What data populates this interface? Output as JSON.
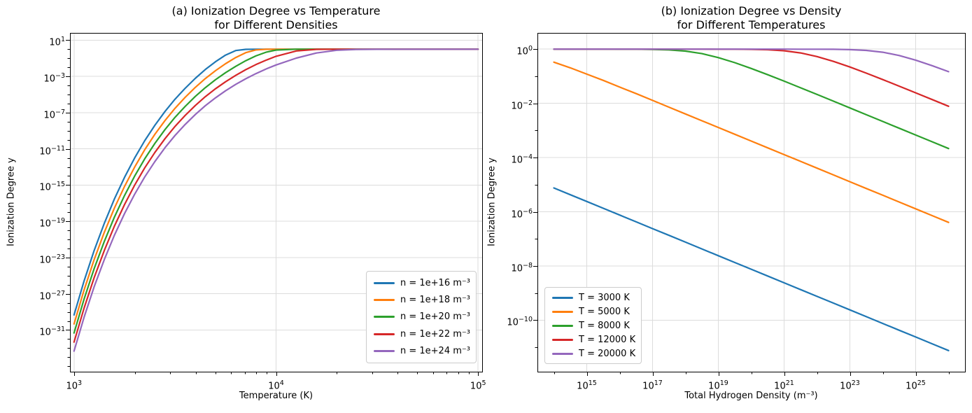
{
  "figure": {
    "background": "#ffffff"
  },
  "chart_data": [
    {
      "id": "left",
      "type": "line",
      "title": "(a) Ionization Degree vs Temperature for Different Densities",
      "title_lines": [
        "(a) Ionization Degree vs Temperature",
        "for Different Densities"
      ],
      "xlabel": "Temperature (K)",
      "ylabel": "Ionization Degree y",
      "xscale": "log",
      "yscale": "log",
      "grid": true,
      "legend_position": "lower right",
      "xlim_log": [
        2.98,
        5.02
      ],
      "ylim_log": [
        -35.6,
        1.8
      ],
      "xticks_exp": [
        3,
        4,
        5
      ],
      "yticks_exp": [
        1,
        -3,
        -7,
        -11,
        -15,
        -19,
        -23,
        -27,
        -31
      ],
      "minor_xticks_log": [
        3.301,
        3.477,
        3.602,
        3.699,
        3.778,
        3.845,
        3.903,
        3.954,
        4.301,
        4.477,
        4.602,
        4.699,
        4.778,
        4.845,
        4.903,
        4.954
      ],
      "minor_yticks_log": [
        0,
        -1,
        -2,
        -4,
        -5,
        -6,
        -8,
        -9,
        -10,
        -12,
        -13,
        -14,
        -16,
        -17,
        -18,
        -20,
        -21,
        -22,
        -24,
        -25,
        -26,
        -28,
        -29,
        -30,
        -32,
        -33,
        -34,
        -35
      ],
      "x_is": "log10 of Temperature in K",
      "y_is": "log10 of ionization degree y",
      "log10_x": [
        3.0,
        3.05,
        3.1,
        3.15,
        3.2,
        3.25,
        3.3,
        3.35,
        3.4,
        3.45,
        3.5,
        3.55,
        3.6,
        3.65,
        3.7,
        3.75,
        3.8,
        3.85,
        3.9,
        3.95,
        4.0,
        4.1,
        4.2,
        4.3,
        4.4,
        4.5,
        4.6,
        4.7,
        4.8,
        4.9,
        5.0
      ],
      "series": [
        {
          "label": "n = 1e+16 m⁻³",
          "color": "#1f77b4",
          "log10_y": [
            -29.33,
            -25.57,
            -22.21,
            -19.21,
            -16.53,
            -14.14,
            -12.01,
            -10.1,
            -8.4,
            -6.88,
            -5.52,
            -4.31,
            -3.22,
            -2.24,
            -1.38,
            -0.65,
            -0.15,
            -0.014,
            -0.001,
            0,
            0,
            0,
            0,
            0,
            0,
            0,
            0,
            0,
            0,
            0,
            0
          ]
        },
        {
          "label": "n = 1e+18 m⁻³",
          "color": "#ff7f0e",
          "log10_y": [
            -30.33,
            -26.57,
            -23.21,
            -20.21,
            -17.53,
            -15.14,
            -13.01,
            -11.1,
            -9.4,
            -7.88,
            -6.52,
            -5.31,
            -4.22,
            -3.24,
            -2.37,
            -1.6,
            -0.92,
            -0.38,
            -0.081,
            -0.01,
            -0.001,
            0,
            0,
            0,
            0,
            0,
            0,
            0,
            0,
            0,
            0
          ]
        },
        {
          "label": "n = 1e+20 m⁻³",
          "color": "#2ca02c",
          "log10_y": [
            -31.33,
            -27.57,
            -24.21,
            -21.21,
            -18.53,
            -16.14,
            -14.01,
            -12.1,
            -10.4,
            -8.88,
            -7.52,
            -6.31,
            -5.22,
            -4.24,
            -3.37,
            -2.59,
            -1.89,
            -1.27,
            -0.74,
            -0.33,
            -0.093,
            -0.004,
            0,
            0,
            0,
            0,
            0,
            0,
            0,
            0,
            0
          ]
        },
        {
          "label": "n = 1e+22 m⁻³",
          "color": "#d62728",
          "log10_y": [
            -32.33,
            -28.57,
            -25.21,
            -22.21,
            -19.53,
            -17.14,
            -15.01,
            -13.1,
            -11.4,
            -9.88,
            -8.52,
            -7.31,
            -6.22,
            -5.24,
            -4.37,
            -3.59,
            -2.89,
            -2.26,
            -1.7,
            -1.21,
            -0.78,
            -0.19,
            -0.018,
            -0.002,
            0,
            0,
            0,
            0,
            0,
            0,
            0
          ]
        },
        {
          "label": "n = 1e+24 m⁻³",
          "color": "#9467bd",
          "log10_y": [
            -33.33,
            -29.57,
            -26.21,
            -23.21,
            -20.53,
            -18.14,
            -16.01,
            -14.1,
            -12.4,
            -10.88,
            -9.52,
            -8.31,
            -7.22,
            -6.24,
            -5.37,
            -4.59,
            -3.89,
            -3.26,
            -2.7,
            -2.19,
            -1.74,
            -0.98,
            -0.42,
            -0.116,
            -0.022,
            -0.005,
            -0.001,
            0,
            0,
            0,
            0
          ]
        }
      ]
    },
    {
      "id": "right",
      "type": "line",
      "title": "(b) Ionization Degree vs Density for Different Temperatures",
      "title_lines": [
        "(b) Ionization Degree vs Density",
        "for Different Temperatures"
      ],
      "xlabel": "Total Hydrogen Density (m⁻³)",
      "ylabel": "Ionization Degree y",
      "xscale": "log",
      "yscale": "log",
      "grid": true,
      "legend_position": "lower left",
      "xlim_log": [
        13.5,
        26.5
      ],
      "ylim_log": [
        -11.9,
        0.6
      ],
      "xticks_exp": [
        15,
        17,
        19,
        21,
        23,
        25
      ],
      "yticks_exp": [
        0,
        -2,
        -4,
        -6,
        -8,
        -10
      ],
      "minor_xticks_log": [
        14,
        16,
        18,
        20,
        22,
        24,
        26
      ],
      "minor_yticks_log": [
        -1,
        -3,
        -5,
        -7,
        -9,
        -11
      ],
      "x_is": "log10 of total hydrogen density in m^-3",
      "y_is": "log10 of ionization degree y",
      "log10_x": [
        14,
        14.5,
        15,
        15.5,
        16,
        16.5,
        17,
        17.5,
        18,
        18.5,
        19,
        19.5,
        20,
        20.5,
        21,
        21.5,
        22,
        22.5,
        23,
        23.5,
        24,
        24.5,
        25,
        25.5,
        26
      ],
      "series": [
        {
          "label": "T = 3000 K",
          "color": "#1f77b4",
          "log10_y": [
            -5.12,
            -5.37,
            -5.62,
            -5.87,
            -6.12,
            -6.37,
            -6.62,
            -6.87,
            -7.12,
            -7.37,
            -7.62,
            -7.87,
            -8.12,
            -8.37,
            -8.62,
            -8.87,
            -9.12,
            -9.37,
            -9.62,
            -9.87,
            -10.12,
            -10.37,
            -10.62,
            -10.87,
            -11.12
          ]
        },
        {
          "label": "T = 5000 K",
          "color": "#ff7f0e",
          "log10_y": [
            -0.48,
            -0.69,
            -0.92,
            -1.15,
            -1.4,
            -1.64,
            -1.89,
            -2.14,
            -2.39,
            -2.64,
            -2.89,
            -3.14,
            -3.39,
            -3.64,
            -3.89,
            -4.14,
            -4.39,
            -4.64,
            -4.89,
            -5.14,
            -5.39,
            -5.64,
            -5.89,
            -6.14,
            -6.39
          ]
        },
        {
          "label": "T = 8000 K",
          "color": "#2ca02c",
          "log10_y": [
            0,
            0,
            0,
            0,
            -0.001,
            -0.003,
            -0.009,
            -0.027,
            -0.072,
            -0.165,
            -0.311,
            -0.498,
            -0.712,
            -0.942,
            -1.18,
            -1.424,
            -1.67,
            -1.918,
            -2.168,
            -2.418,
            -2.668,
            -2.917,
            -3.167,
            -3.417,
            -3.666
          ]
        },
        {
          "label": "T = 12000 K",
          "color": "#d62728",
          "log10_y": [
            0,
            0,
            0,
            0,
            0,
            0,
            0,
            0,
            0,
            0,
            -0.001,
            -0.002,
            -0.007,
            -0.021,
            -0.058,
            -0.138,
            -0.272,
            -0.45,
            -0.659,
            -0.886,
            -1.122,
            -1.365,
            -1.611,
            -1.859,
            -2.107
          ]
        },
        {
          "label": "T = 20000 K",
          "color": "#9467bd",
          "log10_y": [
            0,
            0,
            0,
            0,
            0,
            0,
            0,
            0,
            0,
            0,
            0,
            0,
            0,
            0,
            0,
            -0.001,
            -0.002,
            -0.005,
            -0.016,
            -0.046,
            -0.114,
            -0.235,
            -0.405,
            -0.608,
            -0.831
          ]
        }
      ]
    }
  ],
  "style": {
    "grid_color": "#dcdcdc",
    "frame_color": "#000000",
    "text_color": "#000000",
    "line_width": 2.2
  }
}
